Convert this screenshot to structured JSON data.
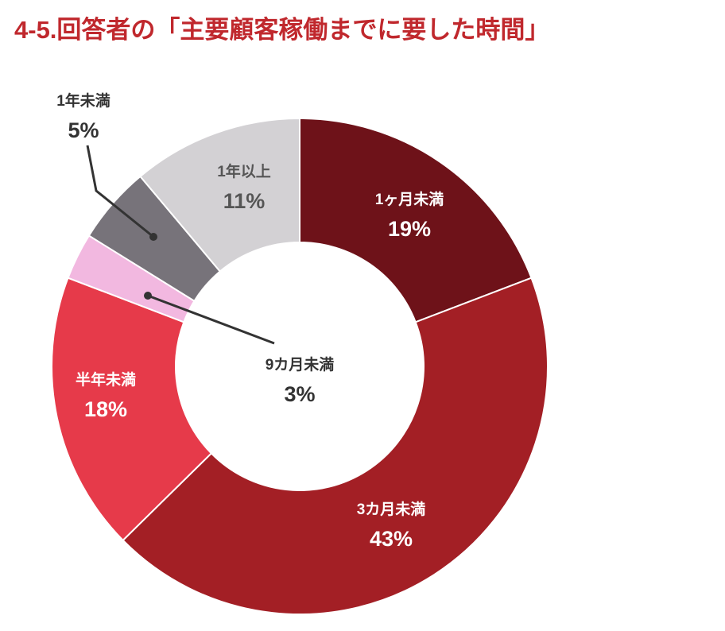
{
  "chart_data": {
    "type": "donut",
    "title": "4-5.回答者の「主要顧客稼働までに要した時間」",
    "categories": [
      "1ヶ月未満",
      "3カ月未満",
      "半年未満",
      "9カ月未満",
      "1年未満",
      "1年以上"
    ],
    "values": [
      19,
      43,
      18,
      3,
      5,
      11
    ],
    "value_labels": [
      "19%",
      "43%",
      "18%",
      "3%",
      "5%",
      "11%"
    ],
    "colors": [
      "#6e1219",
      "#a31f25",
      "#e63a4a",
      "#f2b8e0",
      "#77737a",
      "#d3d1d4"
    ]
  }
}
